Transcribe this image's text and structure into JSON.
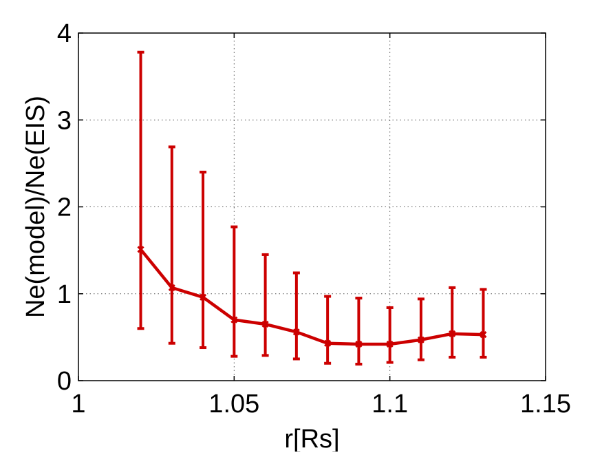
{
  "chart_data": {
    "type": "line",
    "title": "",
    "xlabel": "r[Rs]",
    "ylabel": "Ne(model)/Ne(EIS)",
    "xlim": [
      1,
      1.15
    ],
    "ylim": [
      0,
      4
    ],
    "xticks": [
      1,
      1.05,
      1.1,
      1.15
    ],
    "xtick_labels": [
      "1",
      "1.05",
      "1.1",
      "1.15"
    ],
    "yticks": [
      0,
      1,
      2,
      3,
      4
    ],
    "ytick_labels": [
      "0",
      "1",
      "2",
      "3",
      "4"
    ],
    "grid": "dotted",
    "legend": "none",
    "series": [
      {
        "color": "#cc0000",
        "marker": "x",
        "x": [
          1.02,
          1.03,
          1.04,
          1.05,
          1.06,
          1.07,
          1.08,
          1.09,
          1.1,
          1.11,
          1.12,
          1.13
        ],
        "y": [
          1.51,
          1.07,
          0.96,
          0.7,
          0.65,
          0.56,
          0.43,
          0.42,
          0.42,
          0.47,
          0.54,
          0.53
        ],
        "y_low": [
          0.6,
          0.43,
          0.38,
          0.28,
          0.29,
          0.25,
          0.2,
          0.19,
          0.21,
          0.24,
          0.27,
          0.27
        ],
        "y_high": [
          3.78,
          2.69,
          2.4,
          1.77,
          1.45,
          1.24,
          0.97,
          0.95,
          0.84,
          0.94,
          1.07,
          1.05
        ]
      }
    ]
  }
}
